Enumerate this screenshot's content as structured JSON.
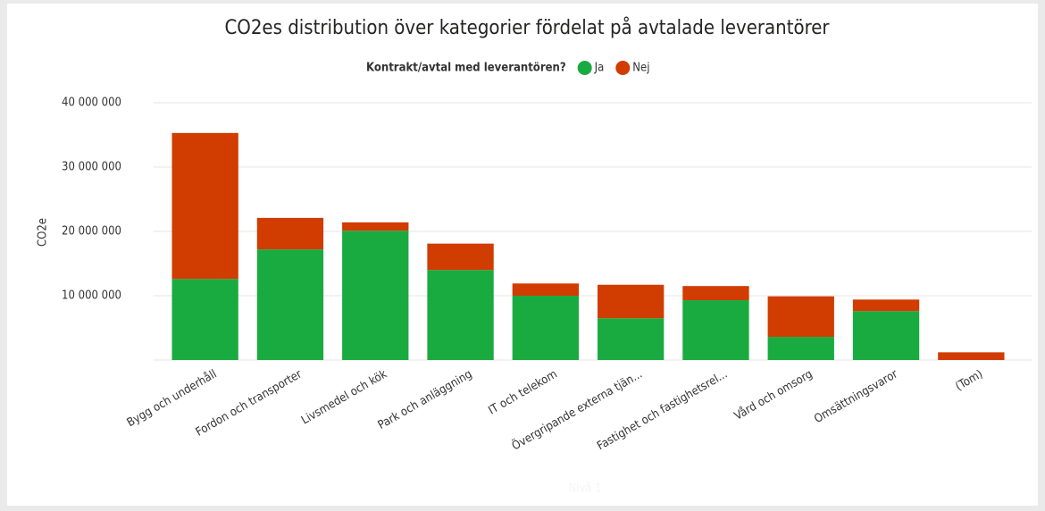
{
  "chart_data": {
    "type": "stacked_bar",
    "title": "CO2es distribution över kategorier fördelat på avtalade leverantörer",
    "legend_title": "Kontrakt/avtal med leverantören?",
    "y_label": "CO2e",
    "x_label": "Nivå 1",
    "categories": [
      "Bygg och underhåll",
      "Fordon och transporter",
      "Livsmedel och kök",
      "Park och anläggning",
      "IT och telekom",
      "Övergripande externa tjän...",
      "Fastighet och fastighetsrel...",
      "Vård och omsorg",
      "Omsättningsvaror",
      "(Tom)"
    ],
    "series": [
      {
        "name": "Ja",
        "color": "#1aab40",
        "values": [
          12600000,
          17200000,
          20100000,
          14000000,
          10000000,
          6500000,
          9300000,
          3600000,
          7600000,
          0
        ]
      },
      {
        "name": "Nej",
        "color": "#d13c00",
        "values": [
          22700000,
          4900000,
          1300000,
          4100000,
          1900000,
          5200000,
          2200000,
          6300000,
          1800000,
          1200000
        ]
      }
    ],
    "ylim": [
      0,
      40000000
    ],
    "yticks": [
      {
        "value": 10000000,
        "label": "10 000 000"
      },
      {
        "value": 20000000,
        "label": "20 000 000"
      },
      {
        "value": 30000000,
        "label": "30 000 000"
      },
      {
        "value": 40000000,
        "label": "40 000 000"
      }
    ],
    "grid": true
  }
}
